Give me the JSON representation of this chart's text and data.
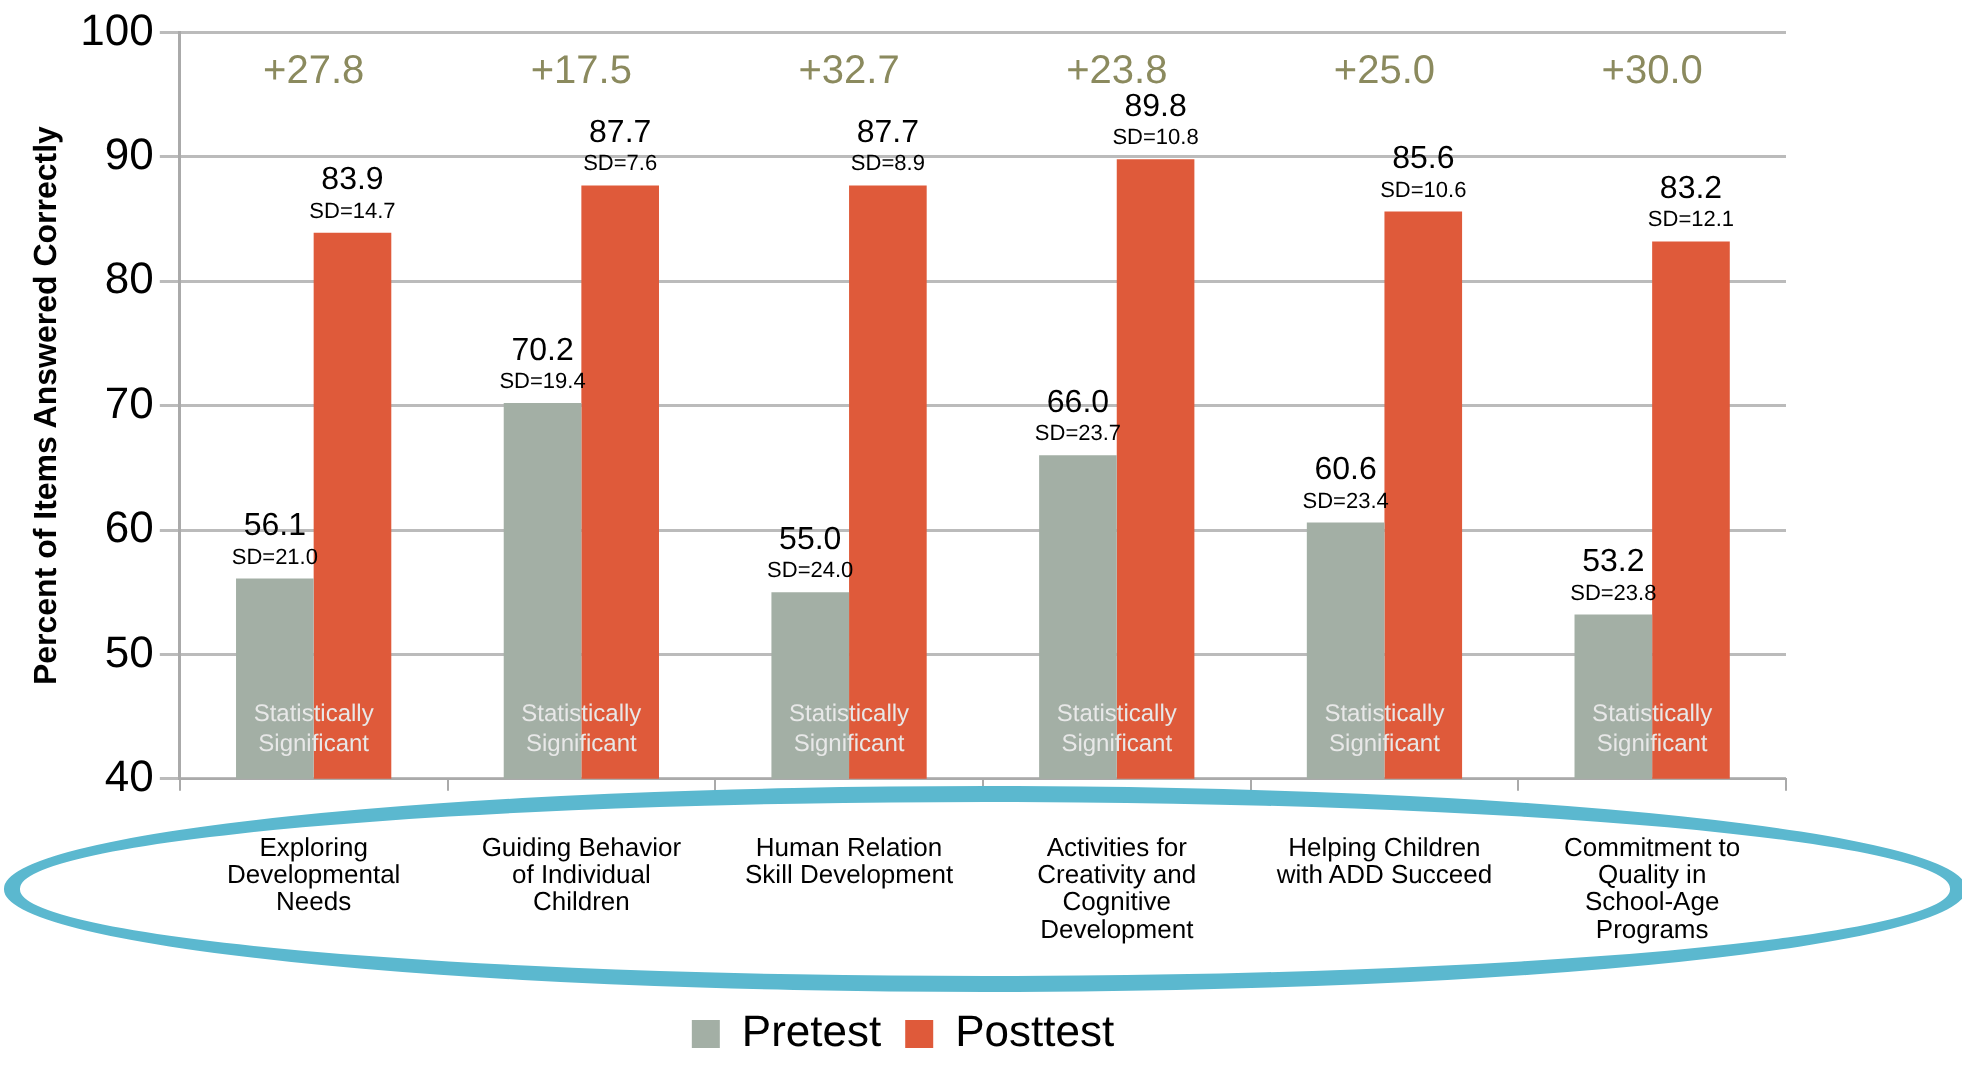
{
  "chart_data": {
    "type": "bar",
    "ylabel": "Percent of Items Answered Correctly",
    "categories": [
      "Exploring Developmental Needs",
      "Guiding Behavior of Individual Children",
      "Human Relation Skill Development",
      "Activities for Creativity and Cognitive Development",
      "Helping Children with ADD Succeed",
      "Commitment to Quality in School-Age Programs"
    ],
    "series": [
      {
        "name": "Pretest",
        "color": "#a3afa5",
        "values": [
          56.1,
          70.2,
          55.0,
          66.0,
          60.6,
          53.2
        ],
        "value_labels": [
          "56.1\nSD=21.0",
          "70.2\nSD=19.4",
          "55.0\nSD=24.0",
          "66.0\nSD=23.7",
          "60.6\nSD=23.4",
          "53.2\nSD=23.8"
        ]
      },
      {
        "name": "Posttest",
        "color": "#df5a3a",
        "values": [
          83.9,
          87.7,
          87.7,
          89.8,
          85.6,
          83.2
        ],
        "value_labels": [
          "83.9\nSD=14.7",
          "87.7\nSD=7.6",
          "87.7\nSD=8.9",
          "89.8\nSD=10.8",
          "85.6\nSD=10.6",
          "83.2\nSD=12.1"
        ]
      }
    ],
    "ylim": [
      40,
      100
    ],
    "yticks": [
      40,
      50,
      60,
      70,
      80,
      90,
      100
    ],
    "grid": "y",
    "legend": "bottom",
    "annotations": [
      "+27.8",
      "+17.5",
      "+32.7",
      "+23.8",
      "+25.0",
      "+30.0",
      {
        "text": "Statistically Significant",
        "x": "Exploring Developmental Needs",
        "y": 44
      },
      {
        "text": "Statistically Significant",
        "x": "Guiding Behavior of Individual Children",
        "y": 44
      },
      {
        "text": "Statistically Significant",
        "x": "Human Relation Skill Development",
        "y": 44
      },
      {
        "text": "Statistically Significant",
        "x": "Activities for Creativity and Cognitive Development",
        "y": 44
      },
      {
        "text": "Statistically Significant",
        "x": "Helping Children with ADD Succeed",
        "y": 44
      },
      {
        "text": "Statistically Significant",
        "x": "Commitment to Quality in School-Age Programs",
        "y": 44
      }
    ]
  }
}
